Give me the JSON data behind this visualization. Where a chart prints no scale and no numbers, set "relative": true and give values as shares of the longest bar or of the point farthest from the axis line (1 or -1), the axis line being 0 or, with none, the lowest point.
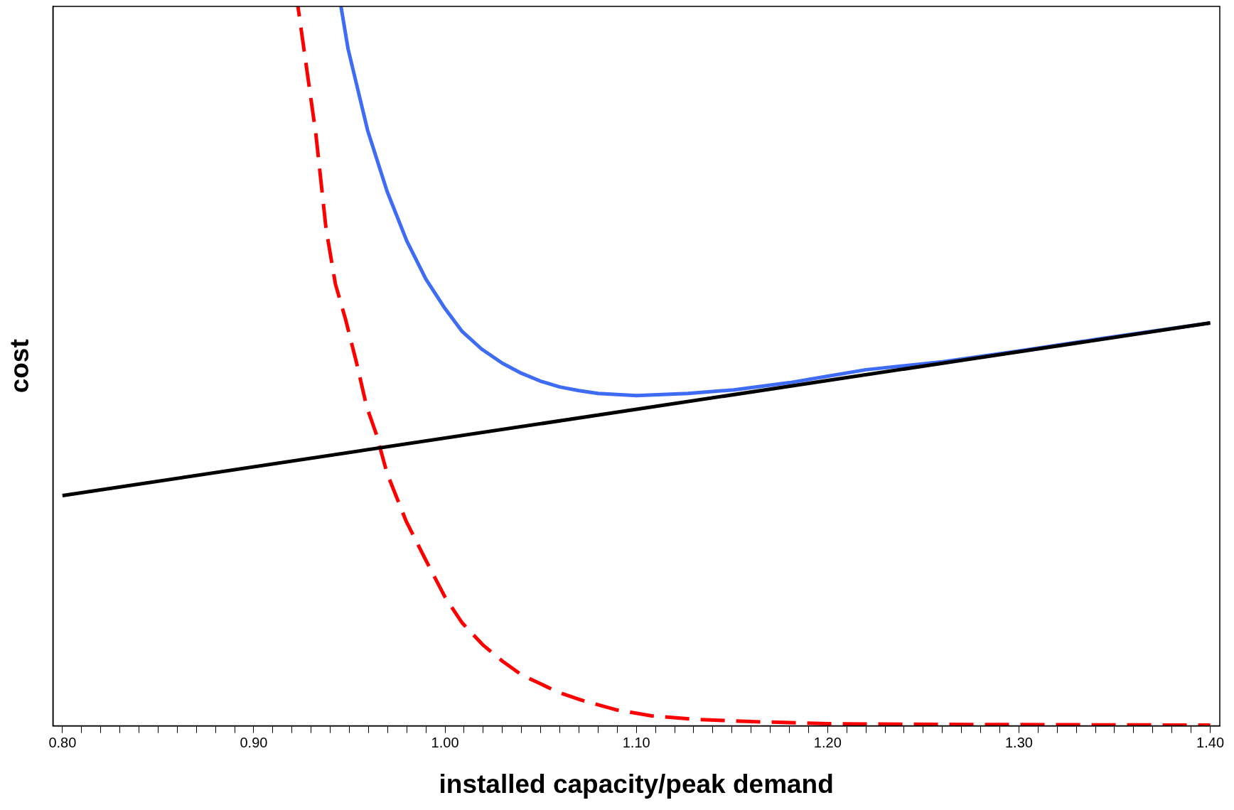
{
  "chart_data": {
    "type": "line",
    "relative": true,
    "xlabel": "installed capacity/peak demand",
    "ylabel": "cost",
    "xlim": [
      0.795,
      1.405
    ],
    "xticks": [
      {
        "value": 0.8,
        "label": "0.80"
      },
      {
        "value": 0.81,
        "label": null
      },
      {
        "value": 0.82,
        "label": null
      },
      {
        "value": 0.83,
        "label": null
      },
      {
        "value": 0.84,
        "label": null
      },
      {
        "value": 0.85,
        "label": null
      },
      {
        "value": 0.86,
        "label": null
      },
      {
        "value": 0.87,
        "label": null
      },
      {
        "value": 0.88,
        "label": null
      },
      {
        "value": 0.89,
        "label": null
      },
      {
        "value": 0.9,
        "label": "0.90"
      },
      {
        "value": 0.91,
        "label": null
      },
      {
        "value": 0.92,
        "label": null
      },
      {
        "value": 0.93,
        "label": null
      },
      {
        "value": 0.94,
        "label": null
      },
      {
        "value": 0.95,
        "label": null
      },
      {
        "value": 0.96,
        "label": null
      },
      {
        "value": 0.97,
        "label": null
      },
      {
        "value": 0.98,
        "label": null
      },
      {
        "value": 0.99,
        "label": null
      },
      {
        "value": 1.0,
        "label": "1.00"
      },
      {
        "value": 1.01,
        "label": null
      },
      {
        "value": 1.02,
        "label": null
      },
      {
        "value": 1.03,
        "label": null
      },
      {
        "value": 1.04,
        "label": null
      },
      {
        "value": 1.05,
        "label": null
      },
      {
        "value": 1.06,
        "label": null
      },
      {
        "value": 1.07,
        "label": null
      },
      {
        "value": 1.08,
        "label": null
      },
      {
        "value": 1.09,
        "label": null
      },
      {
        "value": 1.1,
        "label": "1.10"
      },
      {
        "value": 1.11,
        "label": null
      },
      {
        "value": 1.12,
        "label": null
      },
      {
        "value": 1.13,
        "label": null
      },
      {
        "value": 1.14,
        "label": null
      },
      {
        "value": 1.15,
        "label": null
      },
      {
        "value": 1.16,
        "label": null
      },
      {
        "value": 1.17,
        "label": null
      },
      {
        "value": 1.18,
        "label": null
      },
      {
        "value": 1.19,
        "label": null
      },
      {
        "value": 1.2,
        "label": "1.20"
      },
      {
        "value": 1.21,
        "label": null
      },
      {
        "value": 1.22,
        "label": null
      },
      {
        "value": 1.23,
        "label": null
      },
      {
        "value": 1.24,
        "label": null
      },
      {
        "value": 1.25,
        "label": null
      },
      {
        "value": 1.26,
        "label": null
      },
      {
        "value": 1.27,
        "label": null
      },
      {
        "value": 1.28,
        "label": null
      },
      {
        "value": 1.29,
        "label": null
      },
      {
        "value": 1.3,
        "label": "1.30"
      },
      {
        "value": 1.31,
        "label": null
      },
      {
        "value": 1.32,
        "label": null
      },
      {
        "value": 1.33,
        "label": null
      },
      {
        "value": 1.34,
        "label": null
      },
      {
        "value": 1.35,
        "label": null
      },
      {
        "value": 1.36,
        "label": null
      },
      {
        "value": 1.37,
        "label": null
      },
      {
        "value": 1.38,
        "label": null
      },
      {
        "value": 1.39,
        "label": null
      },
      {
        "value": 1.4,
        "label": "1.40"
      }
    ],
    "tick_labels": "x",
    "grid": false,
    "legend": false,
    "marker": "none",
    "series": [
      {
        "color": "#000000",
        "line_style": "solid",
        "x": [
          0.8,
          1.4
        ],
        "values": [
          0.32,
          0.56
        ]
      },
      {
        "color": "#3f6cf4",
        "line_style": "solid",
        "x": [
          0.9456,
          0.9493,
          0.9595,
          0.9697,
          0.98,
          0.99,
          1.0,
          1.009,
          1.019,
          1.03,
          1.04,
          1.05,
          1.06,
          1.07,
          1.08,
          1.1,
          1.127,
          1.151,
          1.18,
          1.2,
          1.22,
          1.26,
          1.3,
          1.34,
          1.4
        ],
        "values": [
          1.0,
          0.941,
          0.828,
          0.743,
          0.674,
          0.621,
          0.58,
          0.548,
          0.524,
          0.504,
          0.49,
          0.479,
          0.471,
          0.466,
          0.462,
          0.459,
          0.462,
          0.467,
          0.477,
          0.486,
          0.495,
          0.506,
          0.521,
          0.537,
          0.56
        ]
      },
      {
        "color": "#ff0000",
        "line_style": "dashed",
        "x": [
          0.9231,
          0.9325,
          0.9378,
          0.9427,
          0.948,
          0.9538,
          0.959,
          0.964,
          0.9697,
          0.9796,
          0.99,
          1.0,
          1.009,
          1.02,
          1.03,
          1.04,
          1.059,
          1.071,
          1.09,
          1.108,
          1.131,
          1.16,
          1.2,
          1.26,
          1.4
        ],
        "values": [
          1.0,
          0.822,
          0.691,
          0.614,
          0.565,
          0.504,
          0.444,
          0.406,
          0.351,
          0.285,
          0.23,
          0.179,
          0.143,
          0.112,
          0.09,
          0.071,
          0.047,
          0.036,
          0.022,
          0.014,
          0.009,
          0.006,
          0.003,
          0.002,
          0.001
        ]
      }
    ]
  }
}
